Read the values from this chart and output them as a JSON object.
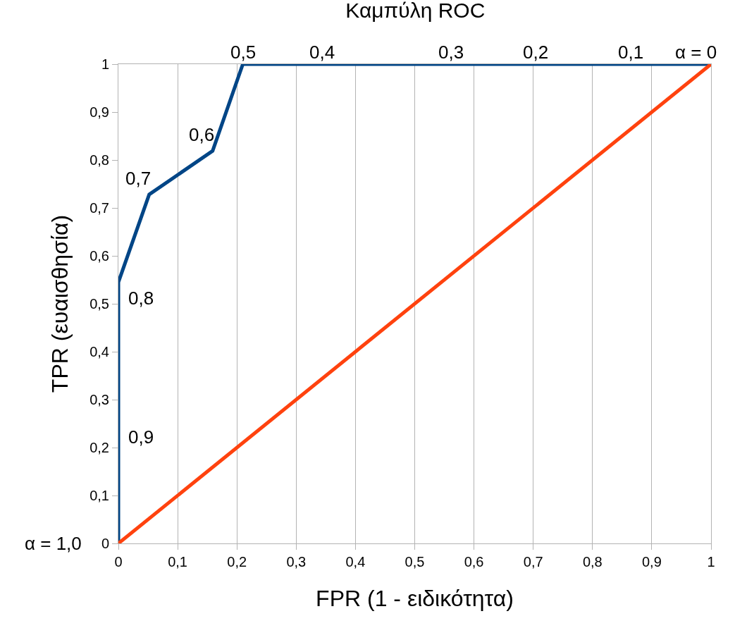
{
  "chart_data": {
    "type": "line",
    "title": "Καμπύλη ROC",
    "xlabel": "FPR (1 - ειδικότητα)",
    "ylabel": "TPR (ευαισθησία)",
    "series": [
      {
        "x": [
          0,
          0,
          0.052,
          0.159,
          0.21,
          1
        ],
        "values": [
          0,
          0.545,
          0.728,
          0.819,
          1,
          1
        ],
        "color": "#004586"
      },
      {
        "x": [
          0,
          1
        ],
        "values": [
          0,
          1
        ],
        "color": "#ff420e"
      }
    ],
    "xlim": [
      0,
      1
    ],
    "ylim": [
      0,
      1
    ],
    "xticks": [
      {
        "value": 0,
        "label": "0"
      },
      {
        "value": 0.1,
        "label": "0,1"
      },
      {
        "value": 0.2,
        "label": "0,2"
      },
      {
        "value": 0.3,
        "label": "0,3"
      },
      {
        "value": 0.4,
        "label": "0,4"
      },
      {
        "value": 0.5,
        "label": "0,5"
      },
      {
        "value": 0.6,
        "label": "0,6"
      },
      {
        "value": 0.7,
        "label": "0,7"
      },
      {
        "value": 0.8,
        "label": "0,8"
      },
      {
        "value": 0.9,
        "label": "0,9"
      },
      {
        "value": 1,
        "label": "1"
      }
    ],
    "yticks": [
      {
        "value": 0,
        "label": "0"
      },
      {
        "value": 0.1,
        "label": "0,1"
      },
      {
        "value": 0.2,
        "label": "0,2"
      },
      {
        "value": 0.3,
        "label": "0,3"
      },
      {
        "value": 0.4,
        "label": "0,4"
      },
      {
        "value": 0.5,
        "label": "0,5"
      },
      {
        "value": 0.6,
        "label": "0,6"
      },
      {
        "value": 0.7,
        "label": "0,7"
      },
      {
        "value": 0.8,
        "label": "0,8"
      },
      {
        "value": 0.9,
        "label": "0,9"
      },
      {
        "value": 1,
        "label": "1"
      }
    ],
    "grid": "x",
    "marker": "none",
    "line_style": "solid",
    "annotations": [
      {
        "text": "α = 1,0",
        "x": 0,
        "y": 0
      },
      "0,9",
      "0,8",
      {
        "text": "0,7",
        "x": 0.052,
        "y": 0.728
      },
      {
        "text": "0,6",
        "x": 0.159,
        "y": 0.819
      },
      {
        "text": "0,5",
        "x": 0.21,
        "y": 1
      },
      {
        "text": "0,4",
        "x": 0.344,
        "y": 1
      },
      {
        "text": "0,3",
        "x": 0.561,
        "y": 1
      },
      {
        "text": "0,2",
        "x": 0.704,
        "y": 1
      },
      {
        "text": "0,1",
        "x": 0.864,
        "y": 1
      },
      {
        "text": "α = 0",
        "x": 0.974,
        "y": 1
      }
    ]
  }
}
